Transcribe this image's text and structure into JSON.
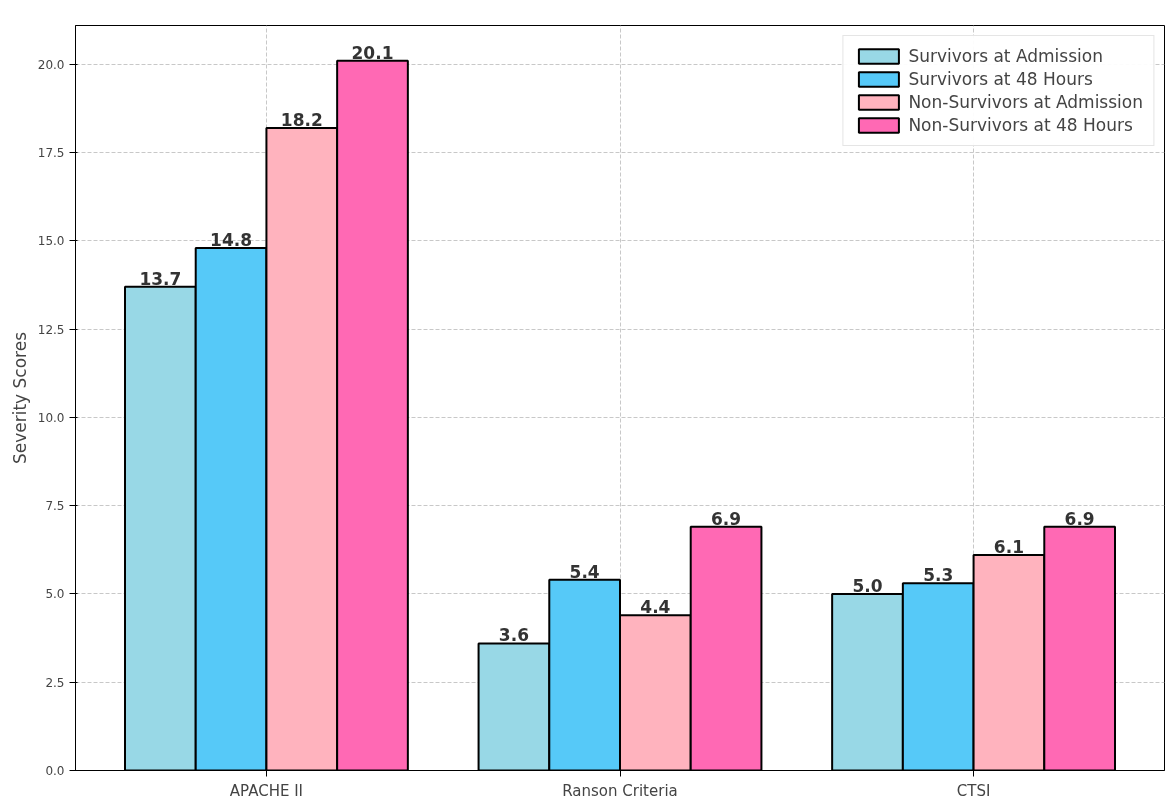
{
  "chart_data": {
    "type": "bar",
    "ylabel": "Severity Scores",
    "categories": [
      "APACHE II",
      "Ranson Criteria",
      "CTSI"
    ],
    "series": [
      {
        "name": "Survivors at Admission",
        "color": "#98d8e6",
        "values": [
          13.7,
          3.6,
          5.0
        ],
        "value_labels": [
          "13.7",
          "3.6",
          "5.0"
        ]
      },
      {
        "name": "Survivors at 48 Hours",
        "color": "#56c9f8",
        "values": [
          14.8,
          5.4,
          5.3
        ],
        "value_labels": [
          "14.8",
          "5.4",
          "5.3"
        ]
      },
      {
        "name": "Non-Survivors at Admission",
        "color": "#ffb3be",
        "values": [
          18.2,
          4.4,
          6.1
        ],
        "value_labels": [
          "18.2",
          "4.4",
          "6.1"
        ]
      },
      {
        "name": "Non-Survivors at 48 Hours",
        "color": "#ff69b4",
        "values": [
          20.1,
          6.9,
          6.9
        ],
        "value_labels": [
          "20.1",
          "6.9",
          "6.9"
        ]
      }
    ],
    "ylim": [
      0,
      21.1
    ],
    "yticks": [
      {
        "value": 0,
        "label": "0.0"
      },
      {
        "value": 2.5,
        "label": "2.5"
      },
      {
        "value": 5,
        "label": "5.0"
      },
      {
        "value": 7.5,
        "label": "7.5"
      },
      {
        "value": 10,
        "label": "10.0"
      },
      {
        "value": 12.5,
        "label": "12.5"
      },
      {
        "value": 15,
        "label": "15.0"
      },
      {
        "value": 17.5,
        "label": "17.5"
      },
      {
        "value": 20,
        "label": "20.0"
      }
    ],
    "grid": true,
    "legend": "top right"
  }
}
